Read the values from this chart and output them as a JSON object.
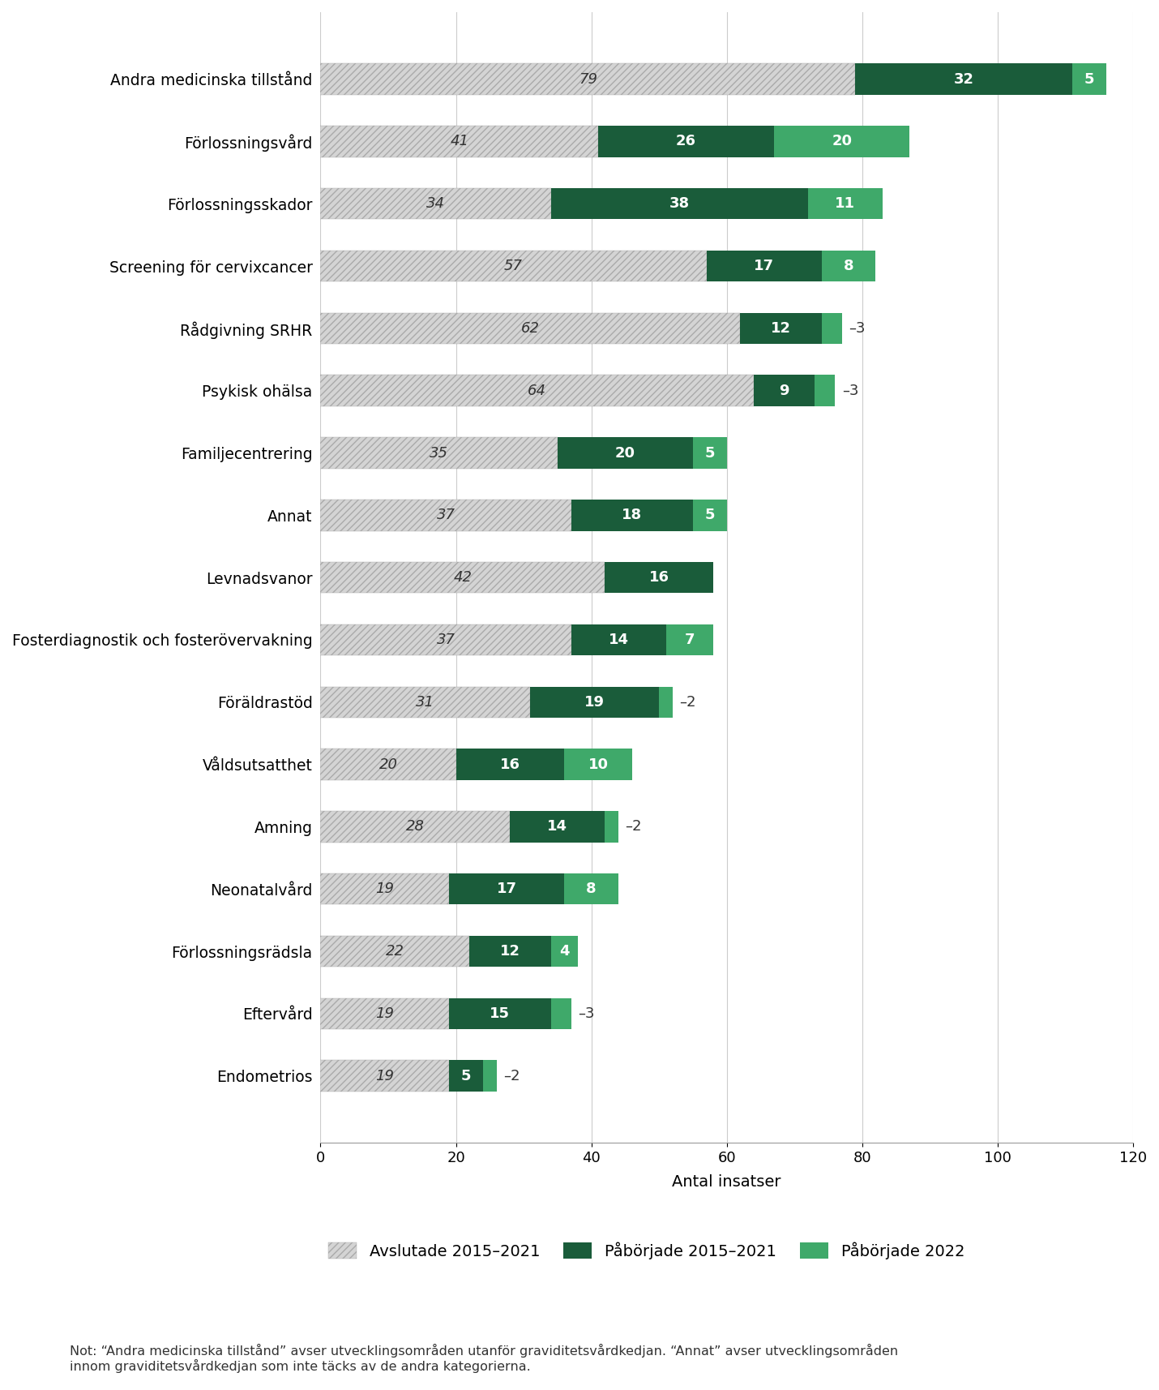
{
  "categories": [
    "Andra medicinska tillstånd",
    "Förlossningsvård",
    "Förlossningsskador",
    "Screening för cervixcancer",
    "Rådgivning SRHR",
    "Psykisk ohälsa",
    "Familjecentrering",
    "Annat",
    "Levnadsvanor",
    "Fosterdiagnostik och fosterövervakning",
    "Föräldrastöd",
    "Våldsutsatthet",
    "Amning",
    "Neonatalvård",
    "Förlossningsrädsla",
    "Eftervård",
    "Endometrios"
  ],
  "avslutade": [
    79,
    41,
    34,
    57,
    62,
    64,
    35,
    37,
    42,
    37,
    31,
    20,
    28,
    19,
    22,
    19,
    19
  ],
  "paborjade_2015_2021": [
    32,
    26,
    38,
    17,
    12,
    9,
    20,
    18,
    16,
    14,
    19,
    16,
    14,
    17,
    12,
    15,
    5
  ],
  "paborjade_2022": [
    5,
    20,
    11,
    8,
    3,
    3,
    5,
    5,
    0,
    7,
    2,
    10,
    2,
    8,
    4,
    3,
    2
  ],
  "color_avslutade": "#d4d4d4",
  "color_paborjade_2015_2021": "#1a5c3a",
  "color_paborjade_2022": "#3fa96a",
  "hatch_avslutade": "////",
  "xlabel": "Antal insatser",
  "xlim": [
    0,
    120
  ],
  "xticks": [
    0,
    20,
    40,
    60,
    80,
    100,
    120
  ],
  "legend_labels": [
    "Avslutade 2015–2021",
    "Påbörjade 2015–2021",
    "Påbörjade 2022"
  ],
  "note": "Not: “Andra medicinska tillstånd” avser utvecklingsområden utanför graviditetsvårdkedjan. “Annat” avser utvecklingsområden\ninnom graviditetsvårdkedjan som inte täcks av de andra kategorierna.",
  "bar_height": 0.5,
  "figsize": [
    14.3,
    17.14
  ],
  "dpi": 100,
  "background_color": "#ffffff"
}
